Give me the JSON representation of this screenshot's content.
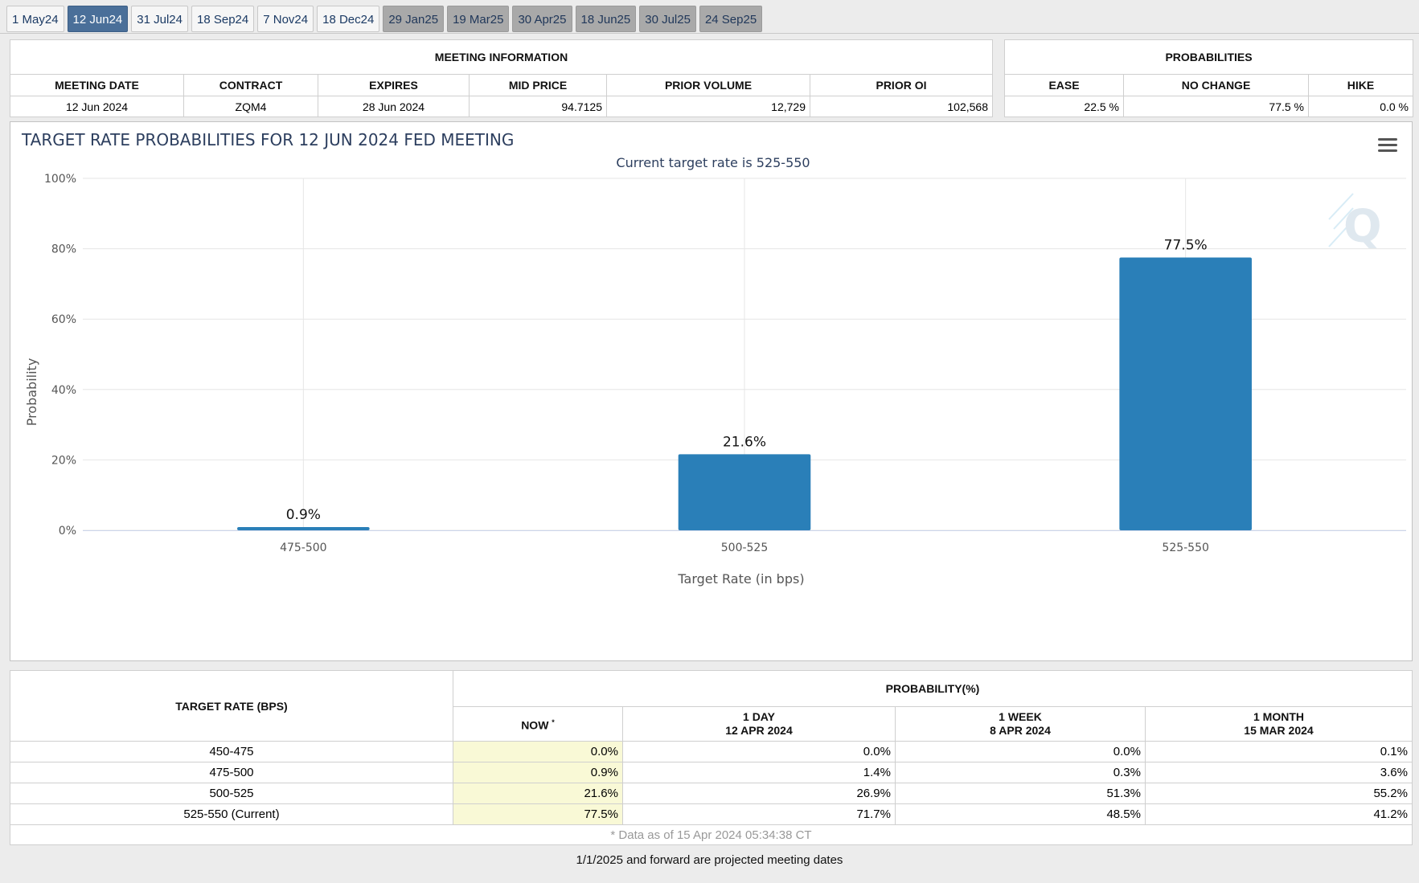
{
  "tabs": [
    {
      "label": "1 May24",
      "state": "normal"
    },
    {
      "label": "12 Jun24",
      "state": "active"
    },
    {
      "label": "31 Jul24",
      "state": "normal"
    },
    {
      "label": "18 Sep24",
      "state": "normal"
    },
    {
      "label": "7 Nov24",
      "state": "normal"
    },
    {
      "label": "18 Dec24",
      "state": "normal"
    },
    {
      "label": "29 Jan25",
      "state": "projected"
    },
    {
      "label": "19 Mar25",
      "state": "projected"
    },
    {
      "label": "30 Apr25",
      "state": "projected"
    },
    {
      "label": "18 Jun25",
      "state": "projected"
    },
    {
      "label": "30 Jul25",
      "state": "projected"
    },
    {
      "label": "24 Sep25",
      "state": "projected"
    }
  ],
  "meeting_info": {
    "caption": "MEETING INFORMATION",
    "headers": [
      "MEETING DATE",
      "CONTRACT",
      "EXPIRES",
      "MID PRICE",
      "PRIOR VOLUME",
      "PRIOR OI"
    ],
    "values": [
      "12 Jun 2024",
      "ZQM4",
      "28 Jun 2024",
      "94.7125",
      "12,729",
      "102,568"
    ]
  },
  "probabilities": {
    "caption": "PROBABILITIES",
    "headers": [
      "EASE",
      "NO CHANGE",
      "HIKE"
    ],
    "values": [
      "22.5 %",
      "77.5 %",
      "0.0 %"
    ]
  },
  "chart_data": {
    "type": "bar",
    "title": "TARGET RATE PROBABILITIES FOR 12 JUN 2024 FED MEETING",
    "subtitle": "Current target rate is 525-550",
    "xlabel": "Target Rate (in bps)",
    "ylabel": "Probability",
    "categories": [
      "475-500",
      "500-525",
      "525-550"
    ],
    "values": [
      0.9,
      21.6,
      77.5
    ],
    "data_labels": [
      "0.9%",
      "21.6%",
      "77.5%"
    ],
    "ylim": [
      0,
      100
    ],
    "yticks": [
      "0%",
      "20%",
      "40%",
      "60%",
      "80%",
      "100%"
    ],
    "bar_color": "#2a7fb8",
    "grid": true
  },
  "history": {
    "col_target": "TARGET RATE (BPS)",
    "col_prob": "PROBABILITY(%)",
    "periods": [
      {
        "line1": "NOW",
        "line2": "",
        "star": "*"
      },
      {
        "line1": "1 DAY",
        "line2": "12 APR 2024",
        "star": ""
      },
      {
        "line1": "1 WEEK",
        "line2": "8 APR 2024",
        "star": ""
      },
      {
        "line1": "1 MONTH",
        "line2": "15 MAR 2024",
        "star": ""
      }
    ],
    "rows": [
      {
        "rate": "450-475",
        "vals": [
          "0.0%",
          "0.0%",
          "0.0%",
          "0.1%"
        ]
      },
      {
        "rate": "475-500",
        "vals": [
          "0.9%",
          "1.4%",
          "0.3%",
          "3.6%"
        ]
      },
      {
        "rate": "500-525",
        "vals": [
          "21.6%",
          "26.9%",
          "51.3%",
          "55.2%"
        ]
      },
      {
        "rate": "525-550 (Current)",
        "vals": [
          "77.5%",
          "71.7%",
          "48.5%",
          "41.2%"
        ]
      }
    ],
    "footnote": "* Data as of 15 Apr 2024 05:34:38 CT"
  },
  "projection_note": "1/1/2025 and forward are projected meeting dates",
  "icons": {
    "menu": "hamburger-menu-icon",
    "watermark": "quikstrike-q-logo"
  }
}
